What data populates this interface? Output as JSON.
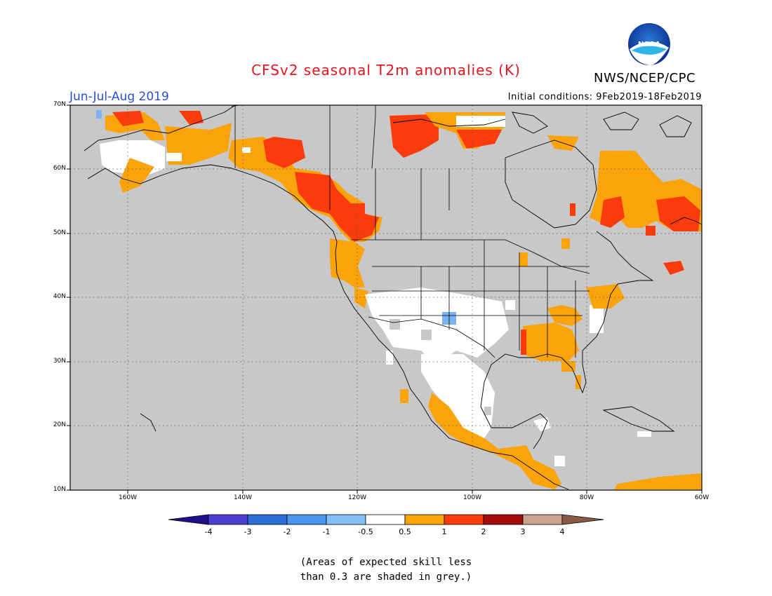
{
  "header": {
    "title": "CFSv2 seasonal T2m anomalies (K)",
    "season": "Jun-Jul-Aug 2019",
    "initial_conditions": "Initial conditions: 9Feb2019-18Feb2019",
    "organization": "NWS/NCEP/CPC",
    "logo_text": "NOAA"
  },
  "map": {
    "lat_labels": [
      "70N",
      "60N",
      "50N",
      "40N",
      "30N",
      "20N",
      "10N"
    ],
    "lon_labels": [
      "160W",
      "140W",
      "120W",
      "100W",
      "80W",
      "60W"
    ],
    "lat_range": [
      10,
      70
    ],
    "lon_range": [
      -170,
      -60
    ],
    "colors": {
      "ocean_low_skill": "#c8c8c8",
      "neutral": "#ffffff",
      "warm_0_5_to_1": "#fba30a",
      "warm_1_to_2": "#fa3c0d",
      "cool_neg1_to_neg0_5": "#7ab3f2"
    }
  },
  "colorbar": {
    "tick_labels": [
      "-4",
      "-3",
      "-2",
      "-1",
      "-0.5",
      "0.5",
      "1",
      "2",
      "3",
      "4"
    ],
    "colors": [
      "#1f0f8a",
      "#4e3fd3",
      "#2b6ed6",
      "#4c95ee",
      "#85c0f5",
      "#ffffff",
      "#fba30a",
      "#fa3c0d",
      "#a30c0c",
      "#c9a290",
      "#8a5a44"
    ]
  },
  "note": {
    "line1": "(Areas of expected skill less",
    "line2": "than 0.3 are shaded in grey.)"
  }
}
